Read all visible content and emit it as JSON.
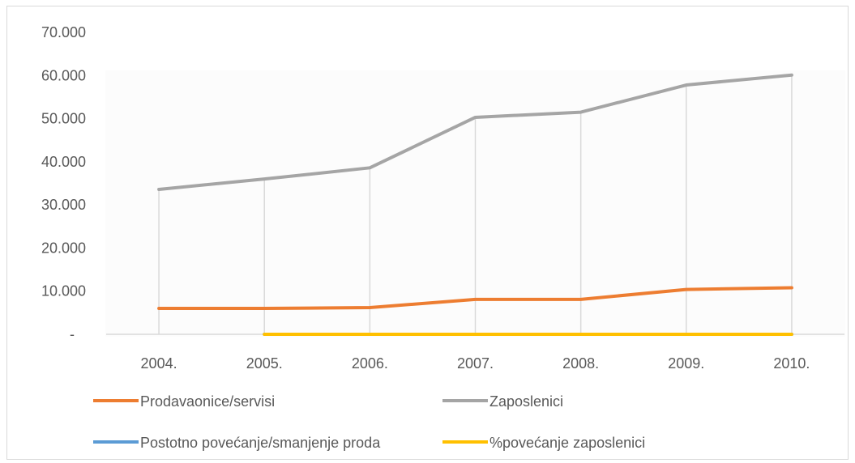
{
  "chart_data": {
    "type": "line",
    "title": "",
    "xlabel": "",
    "ylabel": "",
    "categories": [
      "2004.",
      "2005.",
      "2006.",
      "2007.",
      "2008.",
      "2009.",
      "2010."
    ],
    "ylim": [
      0,
      70000
    ],
    "yticks": [
      {
        "value": 0,
        "label": "-"
      },
      {
        "value": 10000,
        "label": "10.000"
      },
      {
        "value": 20000,
        "label": "20.000"
      },
      {
        "value": 30000,
        "label": "30.000"
      },
      {
        "value": 40000,
        "label": "40.000"
      },
      {
        "value": 50000,
        "label": "50.000"
      },
      {
        "value": 60000,
        "label": "60.000"
      },
      {
        "value": 70000,
        "label": "70.000"
      }
    ],
    "grid": "vertical",
    "legend_position": "bottom",
    "series": [
      {
        "name": "Prodavaonice/servisi",
        "color": "#ED7D31",
        "values": [
          6000,
          6000,
          6200,
          8100,
          8100,
          10400,
          10800
        ]
      },
      {
        "name": "Zaposlenici",
        "color": "#A5A5A5",
        "values": [
          33600,
          36000,
          38600,
          50300,
          51500,
          57800,
          60100
        ]
      },
      {
        "name": "Postotno povećanje/smanjenje proda",
        "color": "#5B9BD5",
        "values": [
          null,
          0,
          0,
          0,
          0,
          0,
          0
        ]
      },
      {
        "name": "%povećanje zaposlenici",
        "color": "#FFC000",
        "values": [
          null,
          0,
          0,
          0,
          0,
          0,
          0
        ]
      }
    ]
  }
}
